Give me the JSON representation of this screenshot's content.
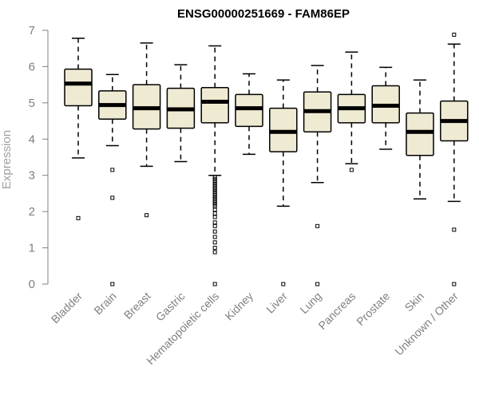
{
  "chart_data": {
    "type": "boxplot",
    "title": "ENSG00000251669 - FAM86EP",
    "xlabel": "",
    "ylabel": "Expression",
    "ylim": [
      0,
      7
    ],
    "yticks": [
      0,
      1,
      2,
      3,
      4,
      5,
      6,
      7
    ],
    "categories": [
      "Bladder",
      "Brain",
      "Breast",
      "Gastric",
      "Hematopoietic cells",
      "Kidney",
      "Liver",
      "Lung",
      "Pancreas",
      "Prostate",
      "Skin",
      "Unknown / Other"
    ],
    "boxes": [
      {
        "category": "Bladder",
        "whisker_low": 3.48,
        "q1": 4.92,
        "median": 5.53,
        "q3": 5.93,
        "whisker_high": 6.78,
        "outliers": [
          1.82
        ]
      },
      {
        "category": "Brain",
        "whisker_low": 3.82,
        "q1": 4.55,
        "median": 4.94,
        "q3": 5.33,
        "whisker_high": 5.78,
        "outliers": [
          3.15,
          2.38,
          0.0
        ]
      },
      {
        "category": "Breast",
        "whisker_low": 3.25,
        "q1": 4.28,
        "median": 4.85,
        "q3": 5.5,
        "whisker_high": 6.65,
        "outliers": [
          1.9
        ]
      },
      {
        "category": "Gastric",
        "whisker_low": 3.38,
        "q1": 4.3,
        "median": 4.82,
        "q3": 5.4,
        "whisker_high": 6.05,
        "outliers": []
      },
      {
        "category": "Hematopoietic cells",
        "whisker_low": 3.0,
        "q1": 4.45,
        "median": 5.03,
        "q3": 5.42,
        "whisker_high": 6.57,
        "outliers": [
          2.95,
          2.9,
          2.85,
          2.8,
          2.75,
          2.7,
          2.65,
          2.6,
          2.55,
          2.5,
          2.45,
          2.4,
          2.35,
          2.3,
          2.25,
          2.2,
          2.15,
          2.05,
          1.95,
          1.85,
          1.7,
          1.6,
          1.45,
          1.3,
          1.15,
          1.0,
          0.88,
          0.0
        ]
      },
      {
        "category": "Kidney",
        "whisker_low": 3.58,
        "q1": 4.35,
        "median": 4.85,
        "q3": 5.23,
        "whisker_high": 5.8,
        "outliers": []
      },
      {
        "category": "Liver",
        "whisker_low": 2.15,
        "q1": 3.65,
        "median": 4.2,
        "q3": 4.85,
        "whisker_high": 5.63,
        "outliers": [
          0.0
        ]
      },
      {
        "category": "Lung",
        "whisker_low": 2.8,
        "q1": 4.2,
        "median": 4.77,
        "q3": 5.3,
        "whisker_high": 6.03,
        "outliers": [
          1.6,
          0.0
        ]
      },
      {
        "category": "Pancreas",
        "whisker_low": 3.32,
        "q1": 4.45,
        "median": 4.85,
        "q3": 5.23,
        "whisker_high": 6.4,
        "outliers": [
          3.15
        ]
      },
      {
        "category": "Prostate",
        "whisker_low": 3.72,
        "q1": 4.45,
        "median": 4.92,
        "q3": 5.47,
        "whisker_high": 5.98,
        "outliers": []
      },
      {
        "category": "Skin",
        "whisker_low": 2.35,
        "q1": 3.55,
        "median": 4.2,
        "q3": 4.72,
        "whisker_high": 5.63,
        "outliers": []
      },
      {
        "category": "Unknown / Other",
        "whisker_low": 2.28,
        "q1": 3.95,
        "median": 4.5,
        "q3": 5.05,
        "whisker_high": 6.62,
        "outliers": [
          6.88,
          1.5,
          0.0
        ]
      }
    ],
    "colors": {
      "box_fill": "#efead2",
      "box_stroke": "#000000",
      "median": "#000000",
      "axis": "#808080"
    },
    "grid": false,
    "legend": "none"
  }
}
